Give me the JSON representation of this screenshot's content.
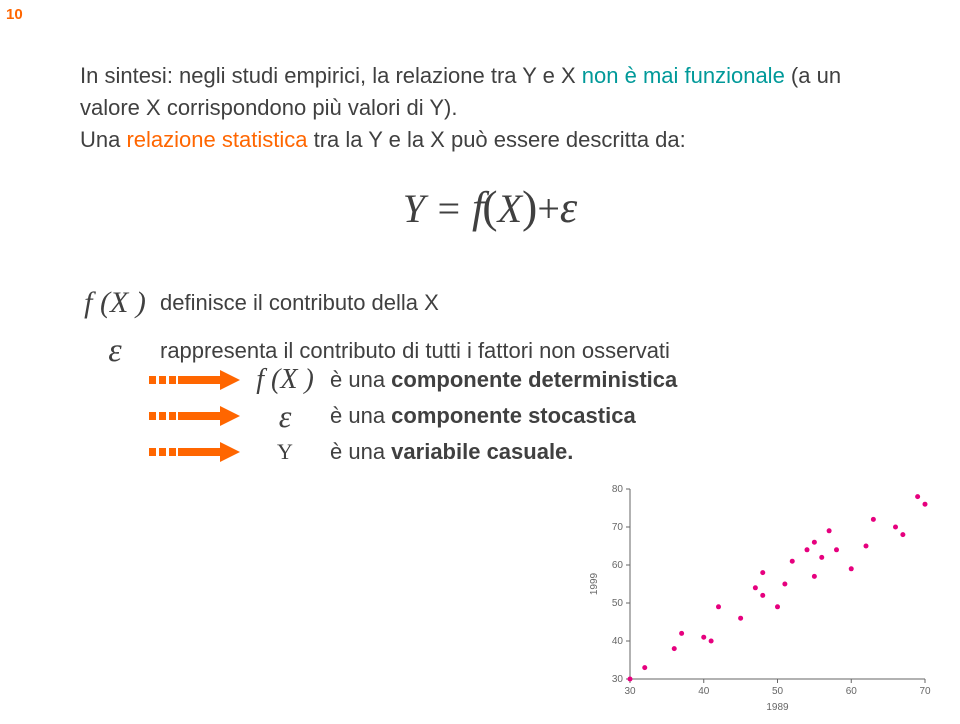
{
  "page_number": "10",
  "page_number_color": "#ff6600",
  "text": {
    "intro_1a": "In sintesi: negli studi empirici, la relazione tra Y e X ",
    "intro_1b": "non è mai funzionale",
    "intro_1c": " (a un valore X corrispondono più valori di Y).",
    "intro_2a": "Una ",
    "intro_2b": "relazione statistica",
    "intro_2c": " tra la Y e la X può essere descritta da:"
  },
  "equation": {
    "Y": "Y",
    "eq": " = ",
    "f": "f",
    "open": "(",
    "X": "X",
    "close": ")",
    "plus": "+",
    "eps": "ε"
  },
  "defs": {
    "fX_sym": "f (X )",
    "fX_txt": "definisce il contributo della X",
    "eps_sym": "ε",
    "eps_txt": "rappresenta il contributo di tutti i fattori non osservati"
  },
  "arrows": {
    "color": "#ff6600",
    "row1_sym": "f (X )",
    "row1_a": "è una ",
    "row1_b": "componente deterministica",
    "row2_sym": "ε",
    "row2_a": "è una ",
    "row2_b": "componente stocastica",
    "row3_sym": "Y",
    "row3_a": "è una ",
    "row3_b": "variabile casuale."
  },
  "chart": {
    "x_label": "1989",
    "y_label": "1999",
    "x_ticks": [
      30,
      40,
      50,
      60,
      70
    ],
    "y_ticks": [
      30,
      40,
      50,
      60,
      70,
      80
    ],
    "x_range": [
      30,
      70
    ],
    "y_range": [
      30,
      80
    ],
    "axis_color": "#666666",
    "tick_font_size": 10,
    "label_font_size": 10,
    "point_color": "#e6007e",
    "point_radius": 2.5,
    "points": [
      [
        30,
        30
      ],
      [
        32,
        33
      ],
      [
        36,
        38
      ],
      [
        37,
        42
      ],
      [
        40,
        41
      ],
      [
        41,
        40
      ],
      [
        42,
        49
      ],
      [
        45,
        46
      ],
      [
        47,
        54
      ],
      [
        48,
        52
      ],
      [
        48,
        58
      ],
      [
        50,
        49
      ],
      [
        51,
        55
      ],
      [
        52,
        61
      ],
      [
        54,
        64
      ],
      [
        55,
        57
      ],
      [
        55,
        66
      ],
      [
        56,
        62
      ],
      [
        57,
        69
      ],
      [
        58,
        64
      ],
      [
        60,
        59
      ],
      [
        62,
        65
      ],
      [
        63,
        72
      ],
      [
        66,
        70
      ],
      [
        67,
        68
      ],
      [
        69,
        78
      ],
      [
        70,
        76
      ]
    ]
  }
}
